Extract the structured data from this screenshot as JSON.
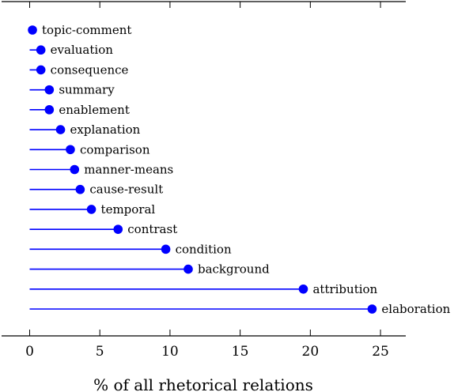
{
  "chart_data": {
    "type": "lollipop",
    "title": "",
    "xlabel": "% of all rhetorical relations",
    "ylabel": "",
    "xlim": [
      -2,
      26.8
    ],
    "xticks": [
      0,
      5,
      10,
      15,
      20,
      25
    ],
    "xtick_labels": [
      "0",
      "5",
      "10",
      "15",
      "20",
      "25"
    ],
    "categories": [
      "topic-comment",
      "evaluation",
      "consequence",
      "summary",
      "enablement",
      "explanation",
      "comparison",
      "manner-means",
      "cause-result",
      "temporal",
      "contrast",
      "condition",
      "background",
      "attribution",
      "elaboration"
    ],
    "values": [
      0.2,
      0.8,
      0.8,
      1.4,
      1.4,
      2.2,
      2.9,
      3.2,
      3.6,
      4.4,
      6.3,
      9.7,
      11.3,
      19.5,
      24.4
    ],
    "color": "#0000ff",
    "grid": false,
    "legend": "none"
  }
}
